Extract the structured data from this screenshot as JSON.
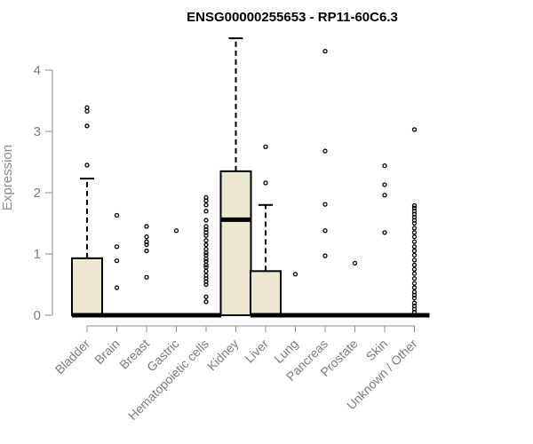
{
  "chart_data": {
    "type": "box",
    "title": "ENSG00000255653 - RP11-60C6.3",
    "ylabel": "Expression",
    "xlabel": "",
    "ylim": [
      0,
      4.6
    ],
    "yticks": [
      0,
      1,
      2,
      3,
      4
    ],
    "box_fill": "#ede8d0",
    "categories": [
      "Bladder",
      "Brain",
      "Breast",
      "Gastric",
      "Hematopoietic cells",
      "Kidney",
      "Liver",
      "Lung",
      "Pancreas",
      "Prostate",
      "Skin",
      "Unknown / Other"
    ],
    "boxes": [
      {
        "q1": 0,
        "median": 0,
        "q3": 0.93,
        "whisker_low": 0,
        "whisker_high": 2.23,
        "outliers": [
          2.45,
          3.09,
          3.33,
          3.39
        ]
      },
      {
        "q1": 0,
        "median": 0,
        "q3": 0,
        "whisker_low": 0,
        "whisker_high": 0,
        "outliers": [
          0.45,
          0.89,
          1.12,
          1.63
        ]
      },
      {
        "q1": 0,
        "median": 0,
        "q3": 0,
        "whisker_low": 0,
        "whisker_high": 0,
        "outliers": [
          0.62,
          1.05,
          1.15,
          1.2,
          1.28,
          1.45
        ]
      },
      {
        "q1": 0,
        "median": 0,
        "q3": 0,
        "whisker_low": 0,
        "whisker_high": 0,
        "outliers": [
          1.38
        ]
      },
      {
        "q1": 0,
        "median": 0,
        "q3": 0,
        "whisker_low": 0,
        "whisker_high": 0,
        "outliers": [
          0.22,
          0.3,
          0.5,
          0.55,
          0.6,
          0.65,
          0.72,
          0.78,
          0.82,
          0.88,
          0.92,
          0.98,
          1.02,
          1.08,
          1.15,
          1.22,
          1.3,
          1.35,
          1.4,
          1.45,
          1.55,
          1.7,
          1.8,
          1.87,
          1.92
        ]
      },
      {
        "q1": 0,
        "median": 1.56,
        "q3": 2.35,
        "whisker_low": 0,
        "whisker_high": 4.52,
        "outliers": []
      },
      {
        "q1": 0,
        "median": 0,
        "q3": 0.72,
        "whisker_low": 0,
        "whisker_high": 1.8,
        "outliers": [
          2.16,
          2.75
        ]
      },
      {
        "q1": 0,
        "median": 0,
        "q3": 0,
        "whisker_low": 0,
        "whisker_high": 0,
        "outliers": [
          0.67
        ]
      },
      {
        "q1": 0,
        "median": 0,
        "q3": 0,
        "whisker_low": 0,
        "whisker_high": 0,
        "outliers": [
          0.97,
          1.38,
          1.81,
          2.68,
          4.31
        ]
      },
      {
        "q1": 0,
        "median": 0,
        "q3": 0,
        "whisker_low": 0,
        "whisker_high": 0,
        "outliers": [
          0.85
        ]
      },
      {
        "q1": 0,
        "median": 0,
        "q3": 0,
        "whisker_low": 0,
        "whisker_high": 0,
        "outliers": [
          1.35,
          1.96,
          2.13,
          2.44
        ]
      },
      {
        "q1": 0,
        "median": 0,
        "q3": 0,
        "whisker_low": 0,
        "whisker_high": 0,
        "outliers": [
          0.05,
          0.1,
          0.15,
          0.2,
          0.28,
          0.33,
          0.38,
          0.45,
          0.52,
          0.6,
          0.68,
          0.75,
          0.82,
          0.9,
          0.98,
          1.05,
          1.12,
          1.2,
          1.28,
          1.35,
          1.42,
          1.5,
          1.55,
          1.6,
          1.65,
          1.7,
          1.75,
          1.79,
          3.03
        ]
      }
    ]
  }
}
